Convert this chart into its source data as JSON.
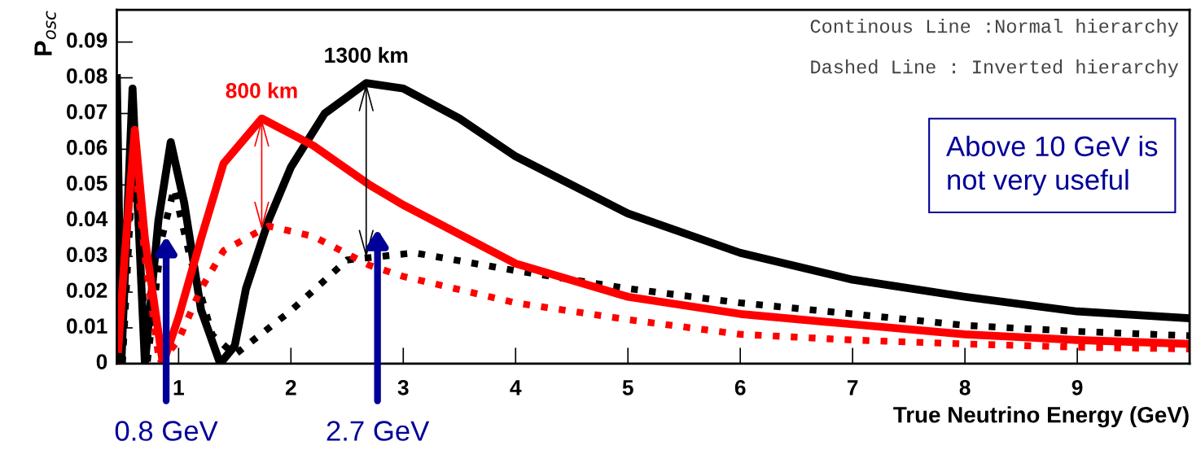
{
  "chart_data": {
    "type": "line",
    "xlabel": "True Neutrino Energy (GeV)",
    "ylabel": "P$_{osc}$",
    "xlim": [
      0.45,
      10
    ],
    "ylim": [
      0,
      0.099
    ],
    "xticks": [
      1,
      2,
      3,
      4,
      5,
      6,
      7,
      8,
      9
    ],
    "yticks": [
      0,
      0.01,
      0.02,
      0.03,
      0.04,
      0.05,
      0.06,
      0.07,
      0.08,
      0.09
    ],
    "marker": "none",
    "series": [
      {
        "color": "#000000",
        "line_style": "dotted",
        "x": [
          0.45,
          0.5,
          0.6,
          0.72,
          0.85,
          0.96,
          1.1,
          1.3,
          1.5,
          2.0,
          2.5,
          3.1,
          4,
          5,
          6,
          7,
          8,
          9,
          10
        ],
        "values": [
          0.025,
          0.0,
          0.06,
          0.0,
          0.035,
          0.049,
          0.03,
          0.008,
          0.0025,
          0.0148,
          0.029,
          0.031,
          0.026,
          0.021,
          0.017,
          0.0139,
          0.0107,
          0.009,
          0.0078
        ]
      },
      {
        "color": "#000000",
        "line_style": "solid",
        "x": [
          0.45,
          0.49,
          0.59,
          0.7,
          0.82,
          0.93,
          1.05,
          1.2,
          1.37,
          1.5,
          1.6,
          1.8,
          2.0,
          2.3,
          2.67,
          3.0,
          3.5,
          4,
          5,
          6,
          7,
          8,
          9,
          10
        ],
        "values": [
          0.081,
          0.0,
          0.077,
          0.0,
          0.04,
          0.062,
          0.045,
          0.015,
          0.0,
          0.005,
          0.021,
          0.04,
          0.055,
          0.07,
          0.0785,
          0.077,
          0.0686,
          0.058,
          0.042,
          0.031,
          0.0235,
          0.0187,
          0.0146,
          0.0127
        ]
      },
      {
        "color": "#ff0000",
        "line_style": "dotted",
        "x": [
          0.46,
          0.52,
          0.6,
          0.7,
          0.83,
          1.0,
          1.2,
          1.4,
          1.8,
          2.2,
          2.7,
          3,
          4,
          5,
          6,
          7,
          8,
          9,
          10
        ],
        "values": [
          0.005,
          0.03,
          0.06,
          0.03,
          0.0,
          0.0066,
          0.021,
          0.0316,
          0.0385,
          0.0356,
          0.0275,
          0.0244,
          0.017,
          0.0123,
          0.0082,
          0.0066,
          0.0055,
          0.0046,
          0.0041
        ]
      },
      {
        "color": "#ff0000",
        "line_style": "solid",
        "x": [
          0.46,
          0.52,
          0.61,
          0.7,
          0.86,
          1.0,
          1.2,
          1.4,
          1.74,
          2.2,
          2.7,
          3,
          4,
          5,
          6,
          7,
          8,
          9,
          10
        ],
        "values": [
          0.003,
          0.03,
          0.0654,
          0.035,
          0.0,
          0.013,
          0.035,
          0.056,
          0.0686,
          0.061,
          0.05,
          0.0444,
          0.028,
          0.0187,
          0.0139,
          0.011,
          0.0082,
          0.0066,
          0.0055
        ]
      }
    ],
    "annotations": [
      {
        "text": "1300 km",
        "x": 2.67,
        "y": 0.0785
      },
      {
        "text": "800 km",
        "x": 1.74,
        "y": 0.0686
      },
      "Continous Line :Normal hierarchy",
      "Dashed Line : Inverted hierarchy",
      "Above 10 GeV is\nnot very useful",
      "0.8 GeV",
      "2.7 GeV"
    ]
  }
}
